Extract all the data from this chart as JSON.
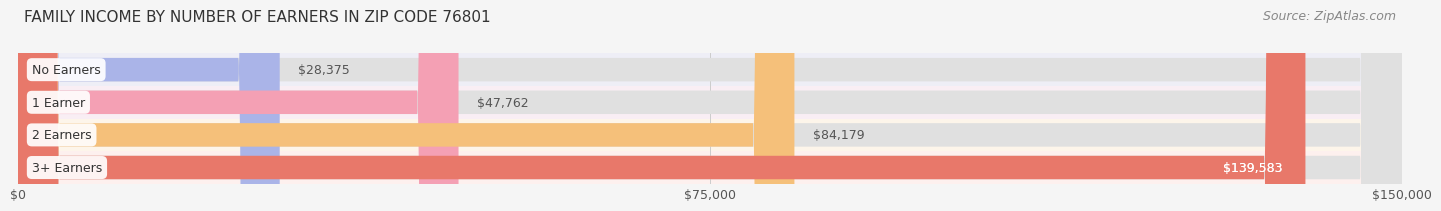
{
  "title": "FAMILY INCOME BY NUMBER OF EARNERS IN ZIP CODE 76801",
  "source": "Source: ZipAtlas.com",
  "categories": [
    "No Earners",
    "1 Earner",
    "2 Earners",
    "3+ Earners"
  ],
  "values": [
    28375,
    47762,
    84179,
    139583
  ],
  "labels": [
    "$28,375",
    "$47,762",
    "$84,179",
    "$139,583"
  ],
  "bar_colors": [
    "#aab4e8",
    "#f4a0b4",
    "#f5c07a",
    "#e8786a"
  ],
  "bar_bg_color": "#e0e0e0",
  "row_bg_colors": [
    "#eeeef6",
    "#f9eef4",
    "#fdf5ea",
    "#fdf0ee"
  ],
  "xlim": [
    0,
    150000
  ],
  "xticks": [
    0,
    75000,
    150000
  ],
  "xticklabels": [
    "$0",
    "$75,000",
    "$150,000"
  ],
  "title_fontsize": 11,
  "source_fontsize": 9,
  "label_fontsize": 9,
  "tick_fontsize": 9,
  "bar_height": 0.72,
  "background_color": "#f5f5f5",
  "label_color": "#555555",
  "label_color_inside": "#ffffff",
  "grid_color": "#cccccc",
  "label_box_color": "#ffffff"
}
